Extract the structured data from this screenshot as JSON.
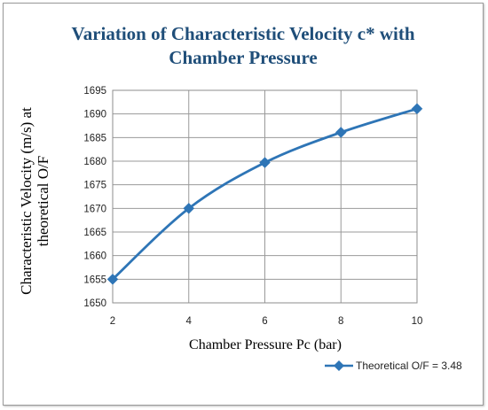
{
  "chart_data": {
    "type": "line",
    "title_line1": "Variation  of Characteristic Velocity c* with",
    "title_line2": "Chamber Pressure",
    "xlabel": "Chamber Pressure Pc (bar)",
    "ylabel_line1": "Characteristic  Velocity  (m/s)  at",
    "ylabel_line2": "theoretical O/F",
    "xlim": [
      2,
      10
    ],
    "ylim": [
      1650,
      1695
    ],
    "xticks": [
      2,
      4,
      6,
      8,
      10
    ],
    "yticks": [
      1650,
      1655,
      1660,
      1665,
      1670,
      1675,
      1680,
      1685,
      1690,
      1695
    ],
    "grid": true,
    "legend_position": "bottom-right",
    "series": [
      {
        "name": "Theoretical O/F = 3.48",
        "color": "#2e75b6",
        "marker": "diamond",
        "x": [
          2,
          4,
          6,
          8,
          10
        ],
        "y": [
          1655,
          1670,
          1679.7,
          1686.1,
          1691.1
        ]
      }
    ]
  }
}
